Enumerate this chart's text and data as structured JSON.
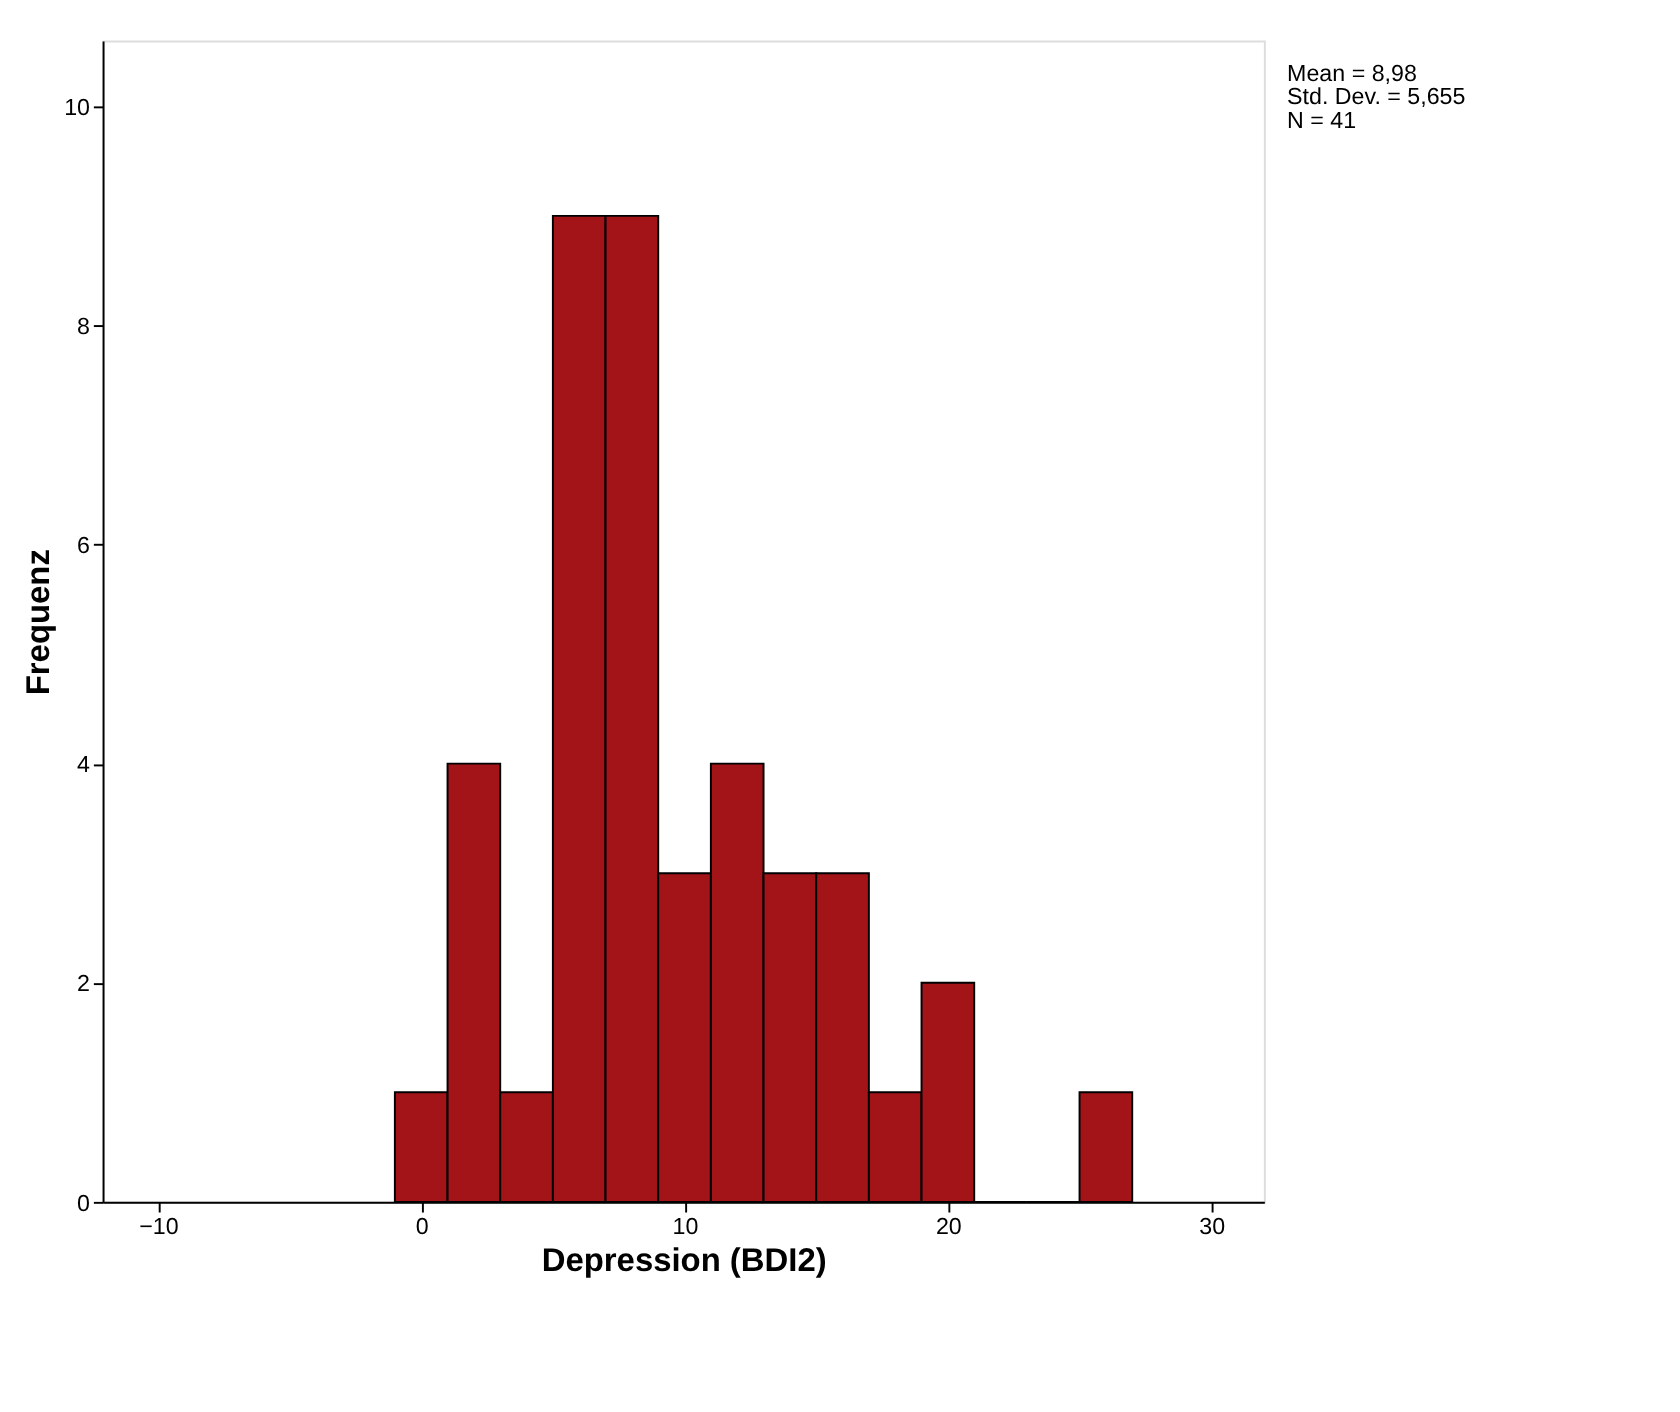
{
  "chart_data": {
    "type": "histogram",
    "xlabel": "Depression (BDI2)",
    "ylabel": "Frequenz",
    "bins": [
      -1,
      1,
      3,
      5,
      7,
      9,
      11,
      13,
      15,
      17,
      19,
      21,
      23,
      25,
      27
    ],
    "values": [
      1,
      4,
      1,
      9,
      9,
      3,
      4,
      3,
      3,
      1,
      2,
      0,
      0,
      1
    ],
    "color": "#a31419",
    "xlim": [
      -12.1,
      32
    ],
    "xticks": [
      -10,
      0,
      10,
      20,
      30
    ],
    "ylim": [
      0,
      10.6
    ],
    "yticks": [
      0,
      2,
      4,
      6,
      8,
      10
    ],
    "annotations": [
      "Mean = 8,98",
      "Std. Dev. = 5,655",
      "N = 41"
    ],
    "grid": false
  }
}
